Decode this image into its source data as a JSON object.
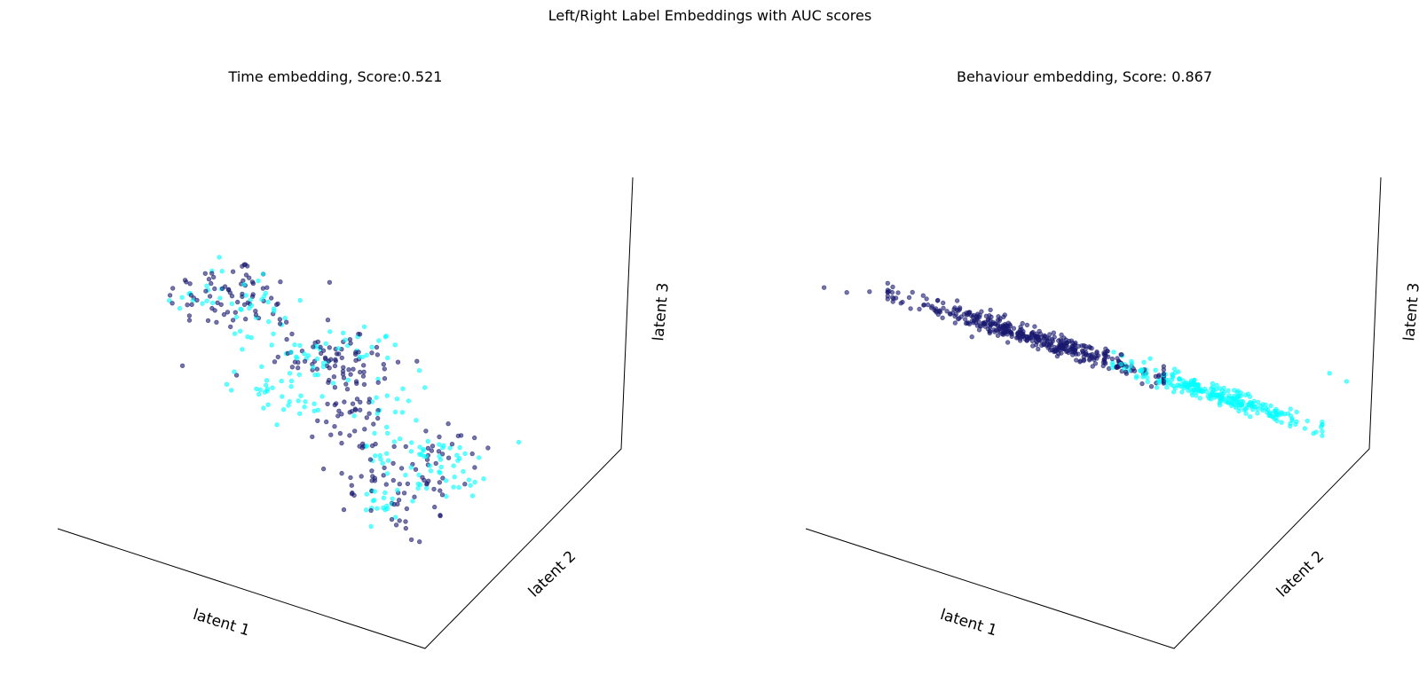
{
  "figure": {
    "title": "Left/Right Label Embeddings with AUC scores"
  },
  "legend": {
    "colors": {
      "left": "#191970",
      "right": "#00ffff"
    }
  },
  "chart_data": [
    {
      "type": "scatter",
      "projection": "3d",
      "title": "Time embedding, Score:0.521",
      "xlabel": "latent 1",
      "ylabel": "latent 2",
      "zlabel": "latent 3",
      "grid": false,
      "series": [
        {
          "color": "#191970",
          "alpha": 0.6,
          "clusters": [
            {
              "n": 75,
              "center": [
                0.32,
                0.29
              ],
              "spread": [
                0.06,
                0.045
              ]
            },
            {
              "n": 70,
              "center": [
                0.49,
                0.445
              ],
              "spread": [
                0.065,
                0.035
              ]
            },
            {
              "n": 45,
              "center": [
                0.53,
                0.58
              ],
              "spread": [
                0.03,
                0.055
              ]
            },
            {
              "n": 55,
              "center": [
                0.6,
                0.76
              ],
              "spread": [
                0.05,
                0.055
              ]
            },
            {
              "n": 25,
              "center": [
                0.67,
                0.67
              ],
              "spread": [
                0.04,
                0.035
              ]
            }
          ]
        },
        {
          "color": "#00ffff",
          "alpha": 0.6,
          "clusters": [
            {
              "n": 40,
              "center": [
                0.33,
                0.3
              ],
              "spread": [
                0.05,
                0.045
              ]
            },
            {
              "n": 50,
              "center": [
                0.48,
                0.44
              ],
              "spread": [
                0.07,
                0.04
              ]
            },
            {
              "n": 30,
              "center": [
                0.4,
                0.53
              ],
              "spread": [
                0.05,
                0.03
              ]
            },
            {
              "n": 45,
              "center": [
                0.68,
                0.7
              ],
              "spread": [
                0.05,
                0.045
              ]
            },
            {
              "n": 30,
              "center": [
                0.6,
                0.62
              ],
              "spread": [
                0.03,
                0.05
              ]
            },
            {
              "n": 20,
              "center": [
                0.58,
                0.8
              ],
              "spread": [
                0.03,
                0.03
              ]
            }
          ]
        }
      ]
    },
    {
      "type": "scatter",
      "projection": "3d",
      "title": "Behaviour embedding, Score: 0.867",
      "xlabel": "latent 1",
      "ylabel": "latent 2",
      "zlabel": "latent 3",
      "grid": false,
      "series": [
        {
          "color": "#191970",
          "alpha": 0.6,
          "band": {
            "n": 420,
            "t_range": [
              0.08,
              0.62
            ],
            "t_peak": 0.36,
            "width": 0.012,
            "outliers": [
              [
                0.04,
                0.27
              ],
              [
                0.08,
                0.282
              ],
              [
                0.12,
                0.28
              ]
            ]
          }
        },
        {
          "color": "#00ffff",
          "alpha": 0.6,
          "band": {
            "n": 260,
            "t_range": [
              0.52,
              0.93
            ],
            "t_peak": 0.72,
            "width": 0.012,
            "outliers": [
              [
                0.96,
                0.5
              ],
              [
                0.93,
                0.48
              ]
            ]
          }
        }
      ]
    }
  ]
}
